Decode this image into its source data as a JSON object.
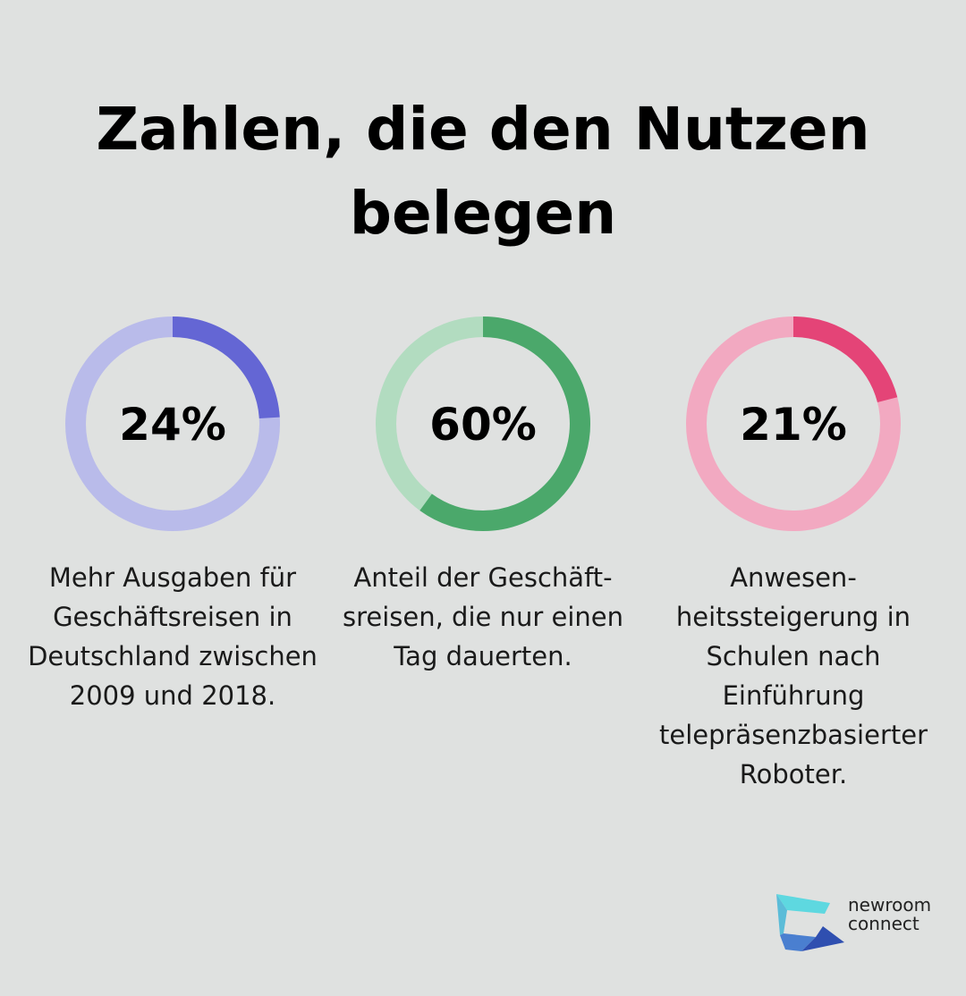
{
  "title": "Zahlen, die den Nutzen belegen",
  "chart_data": [
    {
      "type": "pie",
      "variant": "donut",
      "value": 24,
      "label": "24%",
      "description": "Mehr Ausgaben für Geschäftsreisen in Deutschland zwischen 2009 und 2018.",
      "color": "#6466d4",
      "track_color": "#b9bbea"
    },
    {
      "type": "pie",
      "variant": "donut",
      "value": 60,
      "label": "60%",
      "description": "Anteil der Geschäft­sreisen, die nur einen Tag dauerten.",
      "color": "#4ba86b",
      "track_color": "#b2dcc0"
    },
    {
      "type": "pie",
      "variant": "donut",
      "value": 21,
      "label": "21%",
      "description": "Anwesen­heitssteigerung in Schulen nach Einführung telepräsenzbasierter Roboter.",
      "color": "#e44477",
      "track_color": "#f2a9c1"
    }
  ],
  "logo": {
    "line1": "newroom",
    "line2": "connect"
  }
}
